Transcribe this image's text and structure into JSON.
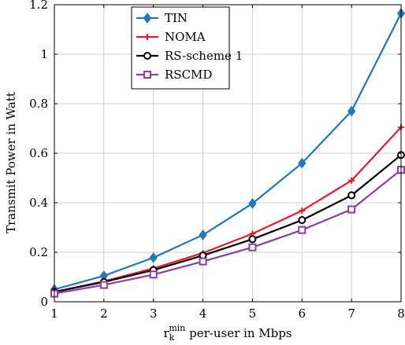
{
  "chart_data": {
    "type": "line",
    "title": "",
    "xlabel": {
      "main": "r",
      "sub": "k",
      "sup": "min",
      "rest": " per-user in Mbps"
    },
    "ylabel": "Transmit Power in Watt",
    "x": [
      1,
      2,
      3,
      4,
      5,
      6,
      7,
      8
    ],
    "xlim": [
      1,
      8
    ],
    "ylim": [
      0,
      1.2
    ],
    "xticks": [
      1,
      2,
      3,
      4,
      5,
      6,
      7,
      8
    ],
    "yticks": [
      0,
      0.2,
      0.4,
      0.6,
      0.8,
      1,
      1.2
    ],
    "grid": true,
    "legend_position": "top-left",
    "series": [
      {
        "name": "TIN",
        "color": "#1f77c0",
        "marker": "diamond",
        "values": [
          0.05,
          0.105,
          0.178,
          0.27,
          0.397,
          0.56,
          0.77,
          1.165
        ]
      },
      {
        "name": "NOMA",
        "color": "#e8192c",
        "marker": "plus",
        "values": [
          0.04,
          0.083,
          0.135,
          0.197,
          0.275,
          0.368,
          0.49,
          0.705
        ]
      },
      {
        "name": "RS-scheme 1",
        "color": "#000000",
        "marker": "circle",
        "values": [
          0.04,
          0.08,
          0.128,
          0.187,
          0.253,
          0.33,
          0.43,
          0.593
        ]
      },
      {
        "name": "RSCMD",
        "color": "#8e3d9e",
        "marker": "square",
        "values": [
          0.033,
          0.068,
          0.11,
          0.163,
          0.22,
          0.29,
          0.373,
          0.533
        ]
      }
    ]
  }
}
